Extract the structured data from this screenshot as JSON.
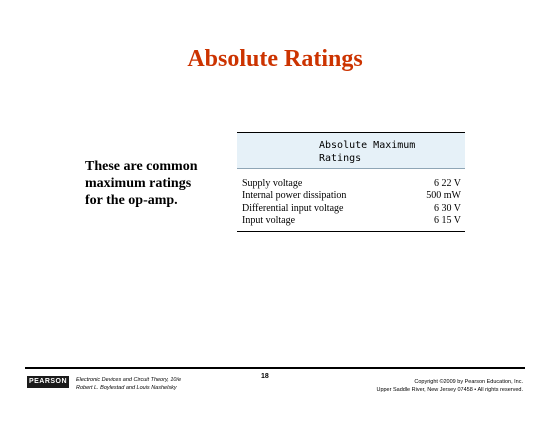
{
  "slide": {
    "title": "Absolute Ratings",
    "body_lines": [
      "These are common",
      "maximum ratings",
      "for the op-amp."
    ]
  },
  "table": {
    "header_lines": [
      "Absolute Maximum",
      "Ratings"
    ],
    "rows": [
      {
        "param": "Supply voltage",
        "value": "6 22 V"
      },
      {
        "param": "Internal power dissipation",
        "value": "500 mW"
      },
      {
        "param": "Differential input voltage",
        "value": "6 30 V"
      },
      {
        "param": "Input voltage",
        "value": "6 15 V"
      }
    ]
  },
  "footer": {
    "logo": "PEARSON",
    "book_title": "Electronic Devices and Circuit Theory, 10/e",
    "authors": "Robert L. Boylestad and Louis Nashelsky",
    "page_number": "18",
    "copyright": "Copyright ©2009 by Pearson Education, Inc.",
    "address": "Upper Saddle River, New Jersey 07458 • All rights reserved."
  },
  "colors": {
    "title": "#cc3300",
    "table_header_bg": "#e6f1f8"
  }
}
